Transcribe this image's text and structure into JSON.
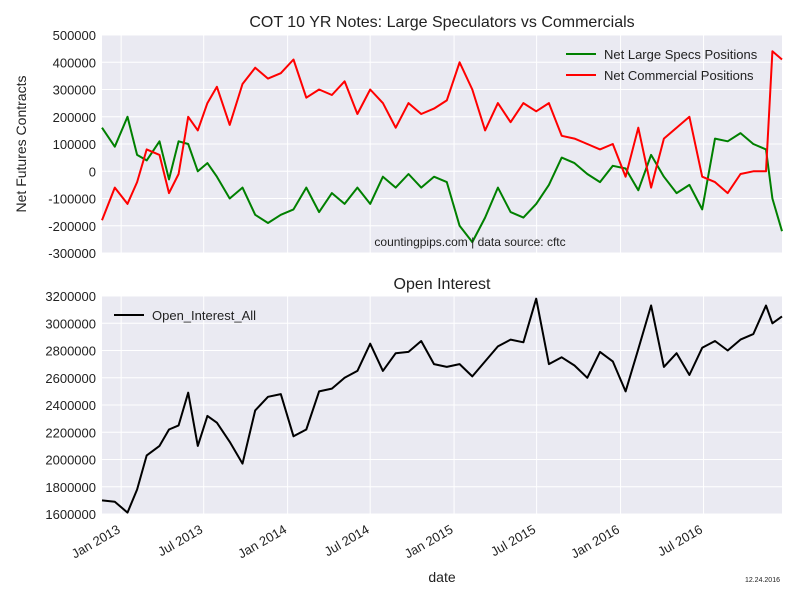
{
  "charts_meta": {
    "shared_xlabel": "date",
    "date_stamp": "12.24.2016",
    "x_tick_labels": [
      "Jan 2013",
      "Jul 2013",
      "Jan 2014",
      "Jul 2014",
      "Jan 2015",
      "Jul 2015",
      "Jan 2016",
      "Jul 2016"
    ],
    "x_tick_dates": [
      "2013-01-01",
      "2013-07-01",
      "2014-01-01",
      "2014-07-01",
      "2015-01-01",
      "2015-07-01",
      "2016-01-01",
      "2016-07-01"
    ],
    "x_range": [
      "2012-11-20",
      "2016-12-20"
    ]
  },
  "chart_data": [
    {
      "type": "line",
      "title": "COT 10 YR Notes: Large Speculators vs Commercials",
      "xlabel": "",
      "ylabel": "Net Futures Contracts",
      "ylim": [
        -300000,
        500000
      ],
      "yticks": [
        -300000,
        -200000,
        -100000,
        0,
        100000,
        200000,
        300000,
        400000,
        500000
      ],
      "grid": true,
      "legend": "top-right",
      "annotation": "countingpips.com | data source: cftc",
      "series": [
        {
          "name": "Net Large Specs Positions",
          "color": "#008000",
          "x": [
            "2012-11-20",
            "2012-12-18",
            "2013-01-15",
            "2013-02-05",
            "2013-02-26",
            "2013-03-26",
            "2013-04-16",
            "2013-05-07",
            "2013-05-28",
            "2013-06-18",
            "2013-07-09",
            "2013-07-30",
            "2013-08-27",
            "2013-09-24",
            "2013-10-22",
            "2013-11-19",
            "2013-12-17",
            "2014-01-14",
            "2014-02-11",
            "2014-03-11",
            "2014-04-08",
            "2014-05-06",
            "2014-06-03",
            "2014-07-01",
            "2014-07-29",
            "2014-08-26",
            "2014-09-23",
            "2014-10-21",
            "2014-11-18",
            "2014-12-16",
            "2015-01-13",
            "2015-02-10",
            "2015-03-10",
            "2015-04-07",
            "2015-05-05",
            "2015-06-02",
            "2015-06-30",
            "2015-07-28",
            "2015-08-25",
            "2015-09-22",
            "2015-10-20",
            "2015-11-17",
            "2015-12-15",
            "2016-01-12",
            "2016-02-09",
            "2016-03-08",
            "2016-04-05",
            "2016-05-03",
            "2016-05-31",
            "2016-06-28",
            "2016-07-26",
            "2016-08-23",
            "2016-09-20",
            "2016-10-18",
            "2016-11-15",
            "2016-11-29",
            "2016-12-20"
          ],
          "values": [
            160000,
            90000,
            200000,
            60000,
            40000,
            110000,
            -30000,
            110000,
            100000,
            0,
            30000,
            -20000,
            -100000,
            -60000,
            -160000,
            -190000,
            -160000,
            -140000,
            -60000,
            -150000,
            -80000,
            -120000,
            -60000,
            -120000,
            -20000,
            -60000,
            -10000,
            -60000,
            -20000,
            -40000,
            -200000,
            -260000,
            -170000,
            -60000,
            -150000,
            -170000,
            -120000,
            -50000,
            50000,
            30000,
            -10000,
            -40000,
            20000,
            10000,
            -70000,
            60000,
            -20000,
            -80000,
            -50000,
            -140000,
            120000,
            110000,
            140000,
            100000,
            80000,
            -100000,
            -220000
          ]
        },
        {
          "name": "Net Commercial Positions",
          "color": "#ff0000",
          "x": [
            "2012-11-20",
            "2012-12-18",
            "2013-01-15",
            "2013-02-05",
            "2013-02-26",
            "2013-03-26",
            "2013-04-16",
            "2013-05-07",
            "2013-05-28",
            "2013-06-18",
            "2013-07-09",
            "2013-07-30",
            "2013-08-27",
            "2013-09-24",
            "2013-10-22",
            "2013-11-19",
            "2013-12-17",
            "2014-01-14",
            "2014-02-11",
            "2014-03-11",
            "2014-04-08",
            "2014-05-06",
            "2014-06-03",
            "2014-07-01",
            "2014-07-29",
            "2014-08-26",
            "2014-09-23",
            "2014-10-21",
            "2014-11-18",
            "2014-12-16",
            "2015-01-13",
            "2015-02-10",
            "2015-03-10",
            "2015-04-07",
            "2015-05-05",
            "2015-06-02",
            "2015-06-30",
            "2015-07-28",
            "2015-08-25",
            "2015-09-22",
            "2015-10-20",
            "2015-11-17",
            "2015-12-15",
            "2016-01-12",
            "2016-02-09",
            "2016-03-08",
            "2016-04-05",
            "2016-05-03",
            "2016-05-31",
            "2016-06-28",
            "2016-07-26",
            "2016-08-23",
            "2016-09-20",
            "2016-10-18",
            "2016-11-15",
            "2016-11-29",
            "2016-12-20"
          ],
          "values": [
            -180000,
            -60000,
            -120000,
            -40000,
            80000,
            60000,
            -80000,
            -10000,
            200000,
            150000,
            250000,
            310000,
            170000,
            320000,
            380000,
            340000,
            360000,
            410000,
            270000,
            300000,
            280000,
            330000,
            210000,
            300000,
            250000,
            160000,
            250000,
            210000,
            230000,
            260000,
            400000,
            300000,
            150000,
            250000,
            180000,
            250000,
            220000,
            250000,
            130000,
            120000,
            100000,
            80000,
            100000,
            -20000,
            160000,
            -60000,
            120000,
            160000,
            200000,
            -20000,
            -40000,
            -80000,
            -10000,
            0,
            0,
            440000,
            410000
          ]
        }
      ]
    },
    {
      "type": "line",
      "title": "Open Interest",
      "xlabel": "date",
      "ylabel": "",
      "ylim": [
        1600000,
        3200000
      ],
      "yticks": [
        1600000,
        1800000,
        2000000,
        2200000,
        2400000,
        2600000,
        2800000,
        3000000,
        3200000
      ],
      "grid": true,
      "legend": "top-left",
      "series": [
        {
          "name": "Open_Interest_All",
          "color": "#000000",
          "x": [
            "2012-11-20",
            "2012-12-18",
            "2013-01-15",
            "2013-02-05",
            "2013-02-26",
            "2013-03-26",
            "2013-04-16",
            "2013-05-07",
            "2013-05-28",
            "2013-06-18",
            "2013-07-09",
            "2013-07-30",
            "2013-08-27",
            "2013-09-24",
            "2013-10-22",
            "2013-11-19",
            "2013-12-17",
            "2014-01-14",
            "2014-02-11",
            "2014-03-11",
            "2014-04-08",
            "2014-05-06",
            "2014-06-03",
            "2014-07-01",
            "2014-07-29",
            "2014-08-26",
            "2014-09-23",
            "2014-10-21",
            "2014-11-18",
            "2014-12-16",
            "2015-01-13",
            "2015-02-10",
            "2015-03-10",
            "2015-04-07",
            "2015-05-05",
            "2015-06-02",
            "2015-06-30",
            "2015-07-28",
            "2015-08-25",
            "2015-09-22",
            "2015-10-20",
            "2015-11-17",
            "2015-12-15",
            "2016-01-12",
            "2016-02-09",
            "2016-03-08",
            "2016-04-05",
            "2016-05-03",
            "2016-05-31",
            "2016-06-28",
            "2016-07-26",
            "2016-08-23",
            "2016-09-20",
            "2016-10-18",
            "2016-11-15",
            "2016-11-29",
            "2016-12-20"
          ],
          "values": [
            1700000,
            1690000,
            1610000,
            1780000,
            2030000,
            2100000,
            2220000,
            2250000,
            2490000,
            2100000,
            2320000,
            2270000,
            2130000,
            1970000,
            2360000,
            2460000,
            2480000,
            2170000,
            2220000,
            2500000,
            2520000,
            2600000,
            2650000,
            2850000,
            2650000,
            2780000,
            2790000,
            2870000,
            2700000,
            2680000,
            2700000,
            2610000,
            2720000,
            2830000,
            2880000,
            2860000,
            3180000,
            2700000,
            2750000,
            2690000,
            2600000,
            2790000,
            2720000,
            2500000,
            2810000,
            3130000,
            2680000,
            2780000,
            2620000,
            2820000,
            2870000,
            2800000,
            2880000,
            2920000,
            3130000,
            3000000,
            3050000
          ]
        }
      ]
    }
  ]
}
